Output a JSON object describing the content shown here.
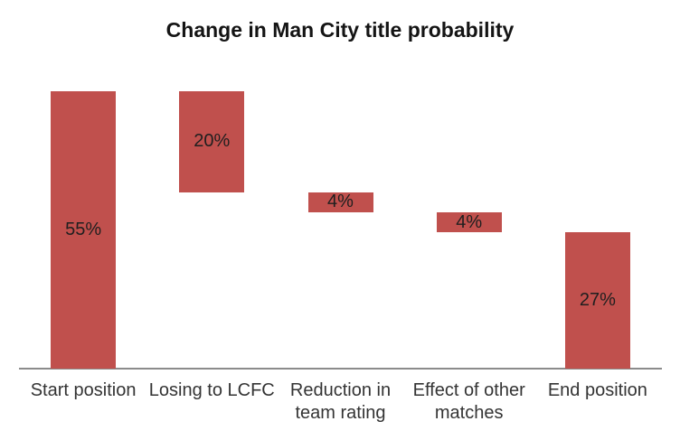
{
  "chart_data": {
    "type": "bar",
    "subtype": "waterfall",
    "title": "Change in Man City title probability",
    "categories": [
      "Start position",
      "Losing to LCFC",
      "Reduction in team rating",
      "Effect of other matches",
      "End position"
    ],
    "values": [
      55,
      -20,
      -4,
      -4,
      27
    ],
    "segments": [
      {
        "category": "Start position",
        "from": 0,
        "to": 55,
        "label": "55%"
      },
      {
        "category": "Losing to LCFC",
        "from": 35,
        "to": 55,
        "label": "20%"
      },
      {
        "category": "Reduction in team rating",
        "from": 31,
        "to": 35,
        "label": "4%"
      },
      {
        "category": "Effect of other matches",
        "from": 27,
        "to": 31,
        "label": "4%"
      },
      {
        "category": "End position",
        "from": 0,
        "to": 27,
        "label": "27%"
      }
    ],
    "unit": "%",
    "ylim": [
      0,
      55
    ],
    "grid": false,
    "legend": false,
    "y_axis_visible": false,
    "x_axis_line": true,
    "colors": {
      "bar": "#c0504d",
      "axis_line": "#8b8b8b",
      "data_label": "#1f1f1f",
      "category_label": "#343434",
      "title": "#141414",
      "background": "#ffffff"
    }
  }
}
